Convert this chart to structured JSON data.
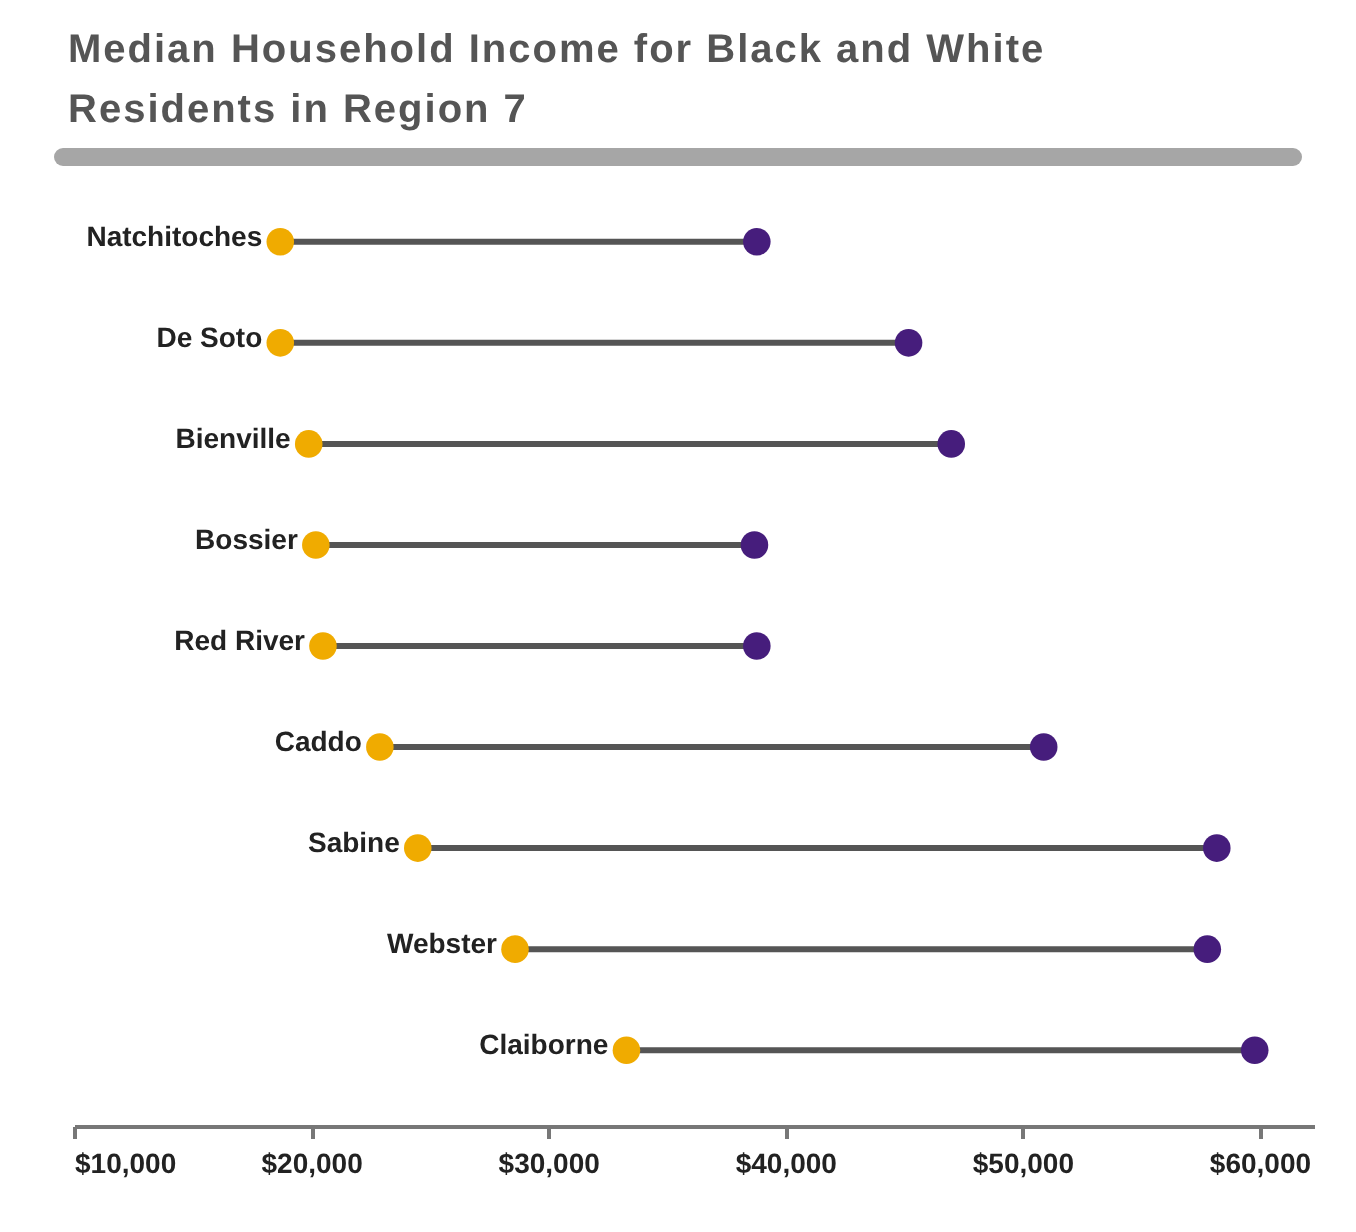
{
  "chart_data": {
    "type": "scatter",
    "title": "Median Household Income for Black and White Residents in Region 7",
    "orientation": "horizontal",
    "categories": [
      "Natchitoches",
      "De Soto",
      "Bienville",
      "Bossier",
      "Red River",
      "Caddo",
      "Sabine",
      "Webster",
      "Claiborne"
    ],
    "series": [
      {
        "color": "#f0ab00",
        "values": [
          18700,
          18700,
          19900,
          20200,
          20500,
          22900,
          24500,
          28600,
          33300
        ]
      },
      {
        "color": "#461d7c",
        "values": [
          38800,
          45200,
          47000,
          38700,
          38800,
          50900,
          58200,
          57800,
          59800
        ]
      }
    ],
    "xlim": [
      10000,
      62300
    ],
    "xticks": [
      {
        "value": 10000,
        "label": "$10,000"
      },
      {
        "value": 20000,
        "label": "$20,000"
      },
      {
        "value": 30000,
        "label": "$30,000"
      },
      {
        "value": 40000,
        "label": "$40,000"
      },
      {
        "value": 50000,
        "label": "$50,000"
      },
      {
        "value": 60000,
        "label": "$60,000"
      }
    ],
    "grid": false,
    "legend": false,
    "marker": "circle"
  }
}
